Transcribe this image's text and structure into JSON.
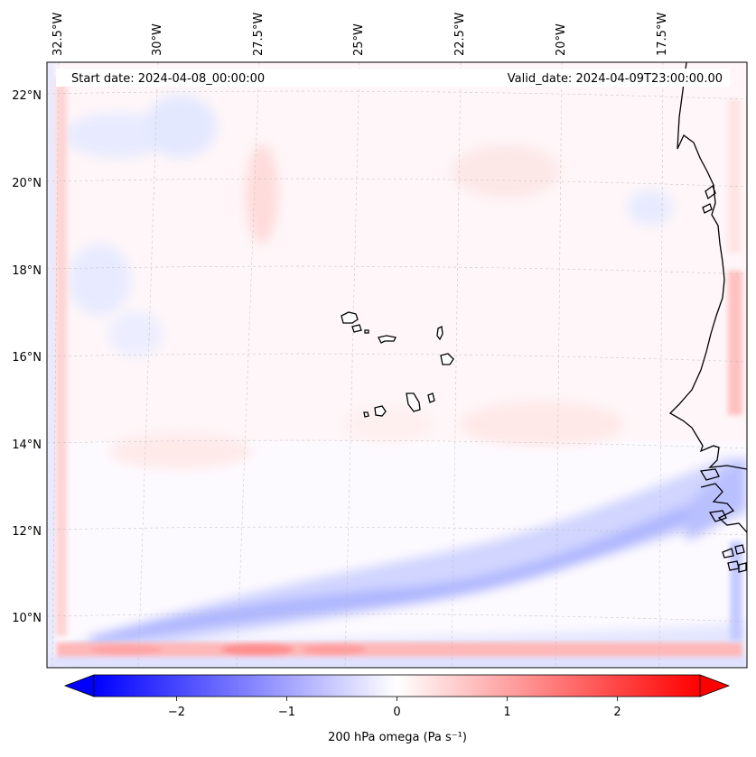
{
  "header": {
    "start_date": "Start date: 2024-04-08_00:00:00",
    "valid_date": "Valid_date: 2024-04-09T23:00:00.00"
  },
  "map": {
    "lon_range": [
      -32.9,
      -15.1
    ],
    "lat_range": [
      8.8,
      22.8
    ],
    "lon_labels": [
      {
        "lon": -32.5,
        "text": "32.5°W"
      },
      {
        "lon": -30,
        "text": "30°W"
      },
      {
        "lon": -27.5,
        "text": "27.5°W"
      },
      {
        "lon": -25,
        "text": "25°W"
      },
      {
        "lon": -22.5,
        "text": "22.5°W"
      },
      {
        "lon": -20,
        "text": "20°W"
      },
      {
        "lon": -17.5,
        "text": "17.5°W"
      }
    ],
    "lat_labels": [
      {
        "lat": 22,
        "text": "22°N"
      },
      {
        "lat": 20,
        "text": "20°N"
      },
      {
        "lat": 18,
        "text": "18°N"
      },
      {
        "lat": 16,
        "text": "16°N"
      },
      {
        "lat": 14,
        "text": "14°N"
      },
      {
        "lat": 12,
        "text": "12°N"
      },
      {
        "lat": 10,
        "text": "10°N"
      }
    ],
    "region": "Cape Verde islands and West African coast (Mauritania, Senegal, Gambia, Guinea-Bissau)"
  },
  "colorbar": {
    "label": "200 hPa omega (Pa s⁻¹)",
    "range": [
      -2.75,
      2.75
    ],
    "ticks": [
      {
        "value": -2,
        "text": "−2"
      },
      {
        "value": -1,
        "text": "−1"
      },
      {
        "value": 0,
        "text": "0"
      },
      {
        "value": 1,
        "text": "1"
      },
      {
        "value": 2,
        "text": "2"
      }
    ],
    "extend": "both",
    "colormap": "bwr",
    "colors": {
      "min": "#0000ff",
      "mid": "#ffffff",
      "max": "#ff0000"
    }
  }
}
